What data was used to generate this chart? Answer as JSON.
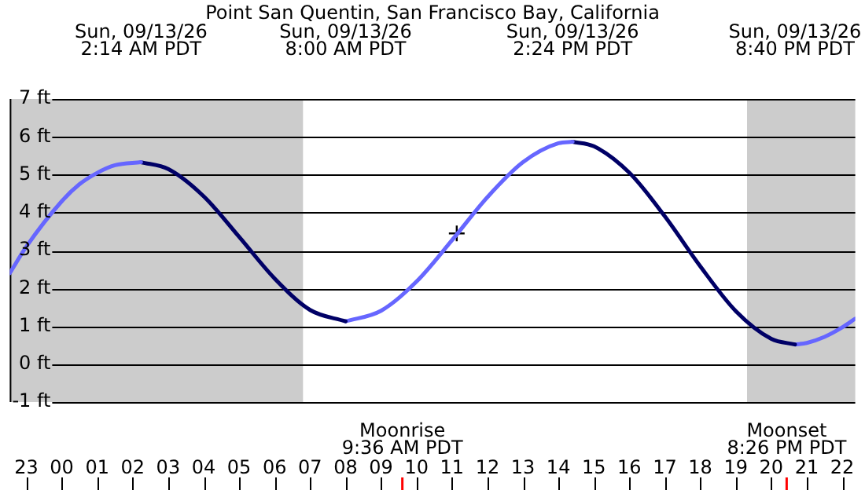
{
  "chart_data": {
    "type": "line",
    "title": "Point San Quentin, San Francisco Bay, California",
    "xlim": [
      "--09-12T22:32",
      "--09-13T22:22"
    ],
    "xticks": [
      {
        "value": "--09-12T23:00",
        "label": "23"
      },
      {
        "value": "--09-13T00:00",
        "label": "00"
      },
      {
        "value": "--09-13T01:00",
        "label": "01"
      },
      {
        "value": "--09-13T02:00",
        "label": "02"
      },
      {
        "value": "--09-13T03:00",
        "label": "03"
      },
      {
        "value": "--09-13T04:00",
        "label": "04"
      },
      {
        "value": "--09-13T05:00",
        "label": "05"
      },
      {
        "value": "--09-13T06:00",
        "label": "06"
      },
      {
        "value": "--09-13T07:00",
        "label": "07"
      },
      {
        "value": "--09-13T08:00",
        "label": "08"
      },
      {
        "value": "--09-13T09:00",
        "label": "09"
      },
      {
        "value": "--09-13T10:00",
        "label": "10"
      },
      {
        "value": "--09-13T11:00",
        "label": "11"
      },
      {
        "value": "--09-13T12:00",
        "label": "12"
      },
      {
        "value": "--09-13T13:00",
        "label": "13"
      },
      {
        "value": "--09-13T14:00",
        "label": "14"
      },
      {
        "value": "--09-13T15:00",
        "label": "15"
      },
      {
        "value": "--09-13T16:00",
        "label": "16"
      },
      {
        "value": "--09-13T17:00",
        "label": "17"
      },
      {
        "value": "--09-13T18:00",
        "label": "18"
      },
      {
        "value": "--09-13T19:00",
        "label": "19"
      },
      {
        "value": "--09-13T20:00",
        "label": "20"
      },
      {
        "value": "--09-13T21:00",
        "label": "21"
      },
      {
        "value": "--09-13T22:00",
        "label": "22"
      }
    ],
    "ylim": [
      -1,
      7
    ],
    "yticks": [
      {
        "value": -1,
        "label": "-1 ft"
      },
      {
        "value": 0,
        "label": "0 ft"
      },
      {
        "value": 1,
        "label": "1 ft"
      },
      {
        "value": 2,
        "label": "2 ft"
      },
      {
        "value": 3,
        "label": "3 ft"
      },
      {
        "value": 4,
        "label": "4 ft"
      },
      {
        "value": 5,
        "label": "5 ft"
      },
      {
        "value": 6,
        "label": "6 ft"
      },
      {
        "value": 7,
        "label": "7 ft"
      }
    ],
    "grid": "y",
    "legend": false,
    "series": [
      {
        "color": "#6666ff",
        "x": [
          "--09-12T22:32",
          "--09-12T23:00",
          "--09-13T00:00",
          "--09-13T00:30",
          "--09-13T01:00",
          "--09-13T01:30",
          "--09-13T02:14"
        ],
        "values": [
          2.4,
          3.1,
          4.3,
          4.75,
          5.05,
          5.25,
          5.33
        ]
      },
      {
        "color": "#000066",
        "x": [
          "--09-13T02:14",
          "--09-13T03:00",
          "--09-13T04:00",
          "--09-13T05:00",
          "--09-13T06:00",
          "--09-13T07:00",
          "--09-13T08:00"
        ],
        "values": [
          5.33,
          5.15,
          4.43,
          3.36,
          2.26,
          1.43,
          1.13
        ]
      },
      {
        "color": "#6666ff",
        "x": [
          "--09-13T08:00",
          "--09-13T09:00",
          "--09-13T10:00",
          "--09-13T11:00",
          "--09-13T12:00",
          "--09-13T13:00",
          "--09-13T14:00",
          "--09-13T14:24"
        ],
        "values": [
          1.13,
          1.41,
          2.18,
          3.27,
          4.41,
          5.33,
          5.83,
          5.87
        ]
      },
      {
        "color": "#000066",
        "x": [
          "--09-13T14:24",
          "--09-13T15:00",
          "--09-13T16:00",
          "--09-13T17:00",
          "--09-13T18:00",
          "--09-13T19:00",
          "--09-13T20:00",
          "--09-13T20:40"
        ],
        "values": [
          5.87,
          5.75,
          5.05,
          3.9,
          2.58,
          1.4,
          0.67,
          0.52
        ]
      },
      {
        "color": "#6666ff",
        "x": [
          "--09-13T20:40",
          "--09-13T21:00",
          "--09-13T21:30",
          "--09-13T22:00",
          "--09-13T22:22"
        ],
        "values": [
          0.52,
          0.56,
          0.72,
          0.97,
          1.2
        ]
      },
      {
        "type": "scatter",
        "marker": "cross",
        "color": "#000000",
        "x": [
          "--09-13T11:08"
        ],
        "values": [
          3.45
        ]
      }
    ],
    "bands": [
      {
        "axis": "x",
        "from": "--09-12T22:32",
        "to": "--09-13T06:48",
        "color": "#cccccc"
      },
      {
        "axis": "x",
        "from": "--09-13T19:19",
        "to": "--09-13T22:22",
        "color": "#cccccc"
      }
    ],
    "ref_lines": [
      {
        "axis": "x",
        "value": "--09-13T09:36",
        "label": "Moonrise\n9:36 AM PDT",
        "color": "#ff0000"
      },
      {
        "axis": "x",
        "value": "--09-13T20:26",
        "label": "Moonset\n8:26 PM PDT",
        "color": "#ff0000"
      }
    ],
    "annotations": [
      "Sun, 09/13/26\n2:14 AM PDT",
      "Sun, 09/13/26\n8:00 AM PDT",
      "Sun, 09/13/26\n2:24 PM PDT",
      "Sun, 09/13/26\n8:40 PM PDT"
    ]
  }
}
